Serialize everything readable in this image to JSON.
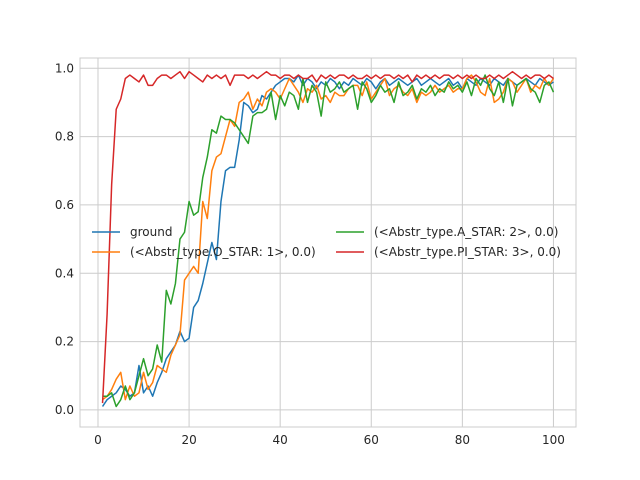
{
  "chart_data": {
    "type": "line",
    "title": "",
    "xlabel": "",
    "ylabel": "",
    "xlim": [
      -3.95,
      104.95
    ],
    "ylim": [
      -0.05,
      1.03
    ],
    "xticks": [
      0,
      20,
      40,
      60,
      80,
      100
    ],
    "yticks": [
      0.0,
      0.2,
      0.4,
      0.6,
      0.8,
      1.0
    ],
    "xtick_labels": [
      "0",
      "20",
      "40",
      "60",
      "80",
      "100"
    ],
    "ytick_labels": [
      "0.0",
      "0.2",
      "0.4",
      "0.6",
      "0.8",
      "1.0"
    ],
    "grid": true,
    "legend_location": "center-left",
    "x": [
      1,
      2,
      3,
      4,
      5,
      6,
      7,
      8,
      9,
      10,
      11,
      12,
      13,
      14,
      15,
      16,
      17,
      18,
      19,
      20,
      21,
      22,
      23,
      24,
      25,
      26,
      27,
      28,
      29,
      30,
      31,
      32,
      33,
      34,
      35,
      36,
      37,
      38,
      39,
      40,
      41,
      42,
      43,
      44,
      45,
      46,
      47,
      48,
      49,
      50,
      51,
      52,
      53,
      54,
      55,
      56,
      57,
      58,
      59,
      60,
      61,
      62,
      63,
      64,
      65,
      66,
      67,
      68,
      69,
      70,
      71,
      72,
      73,
      74,
      75,
      76,
      77,
      78,
      79,
      80,
      81,
      82,
      83,
      84,
      85,
      86,
      87,
      88,
      89,
      90,
      91,
      92,
      93,
      94,
      95,
      96,
      97,
      98,
      99,
      100
    ],
    "series": [
      {
        "name": "ground",
        "color": "#1f77b4",
        "values": [
          0.01,
          0.03,
          0.04,
          0.05,
          0.07,
          0.06,
          0.04,
          0.05,
          0.13,
          0.05,
          0.07,
          0.04,
          0.08,
          0.11,
          0.15,
          0.17,
          0.19,
          0.23,
          0.2,
          0.21,
          0.3,
          0.32,
          0.37,
          0.43,
          0.49,
          0.44,
          0.61,
          0.7,
          0.71,
          0.71,
          0.79,
          0.9,
          0.89,
          0.87,
          0.88,
          0.92,
          0.91,
          0.93,
          0.95,
          0.96,
          0.97,
          0.97,
          0.96,
          0.98,
          0.95,
          0.97,
          0.96,
          0.94,
          0.96,
          0.95,
          0.97,
          0.96,
          0.94,
          0.96,
          0.95,
          0.97,
          0.96,
          0.95,
          0.97,
          0.96,
          0.94,
          0.96,
          0.97,
          0.95,
          0.96,
          0.97,
          0.96,
          0.95,
          0.96,
          0.97,
          0.95,
          0.96,
          0.97,
          0.96,
          0.95,
          0.96,
          0.97,
          0.95,
          0.96,
          0.94,
          0.97,
          0.96,
          0.95,
          0.97,
          0.96,
          0.95,
          0.97,
          0.96,
          0.95,
          0.97,
          0.96,
          0.95,
          0.96,
          0.97,
          0.96,
          0.95,
          0.97,
          0.96,
          0.95,
          0.96
        ]
      },
      {
        "name": "(<Abstr_type.O_STAR: 1>, 0.0)",
        "color": "#ff7f0e",
        "values": [
          0.03,
          0.04,
          0.06,
          0.09,
          0.11,
          0.03,
          0.07,
          0.04,
          0.05,
          0.11,
          0.06,
          0.08,
          0.13,
          0.12,
          0.11,
          0.16,
          0.19,
          0.22,
          0.38,
          0.4,
          0.42,
          0.4,
          0.61,
          0.56,
          0.7,
          0.74,
          0.75,
          0.8,
          0.85,
          0.83,
          0.9,
          0.91,
          0.93,
          0.88,
          0.91,
          0.89,
          0.93,
          0.94,
          0.93,
          0.91,
          0.94,
          0.97,
          0.95,
          0.93,
          0.9,
          0.94,
          0.93,
          0.95,
          0.91,
          0.92,
          0.9,
          0.93,
          0.92,
          0.92,
          0.94,
          0.95,
          0.95,
          0.92,
          0.96,
          0.91,
          0.93,
          0.95,
          0.97,
          0.92,
          0.94,
          0.95,
          0.93,
          0.92,
          0.94,
          0.9,
          0.93,
          0.92,
          0.93,
          0.95,
          0.93,
          0.94,
          0.95,
          0.93,
          0.94,
          0.94,
          0.97,
          0.98,
          0.96,
          0.93,
          0.92,
          0.97,
          0.9,
          0.91,
          0.93,
          0.97,
          0.96,
          0.93,
          0.95,
          0.97,
          0.93,
          0.95,
          0.94,
          0.97,
          0.95,
          0.97
        ]
      },
      {
        "name": "(<Abstr_type.A_STAR: 2>, 0.0)",
        "color": "#2ca02c",
        "values": [
          0.04,
          0.04,
          0.05,
          0.01,
          0.03,
          0.07,
          0.03,
          0.05,
          0.1,
          0.15,
          0.1,
          0.12,
          0.19,
          0.14,
          0.35,
          0.31,
          0.37,
          0.5,
          0.52,
          0.61,
          0.57,
          0.58,
          0.68,
          0.74,
          0.82,
          0.81,
          0.86,
          0.85,
          0.85,
          0.84,
          0.82,
          0.8,
          0.78,
          0.86,
          0.87,
          0.87,
          0.88,
          0.93,
          0.85,
          0.92,
          0.89,
          0.93,
          0.92,
          0.88,
          0.97,
          0.9,
          0.95,
          0.93,
          0.86,
          0.96,
          0.93,
          0.94,
          0.96,
          0.93,
          0.94,
          0.95,
          0.88,
          0.96,
          0.94,
          0.9,
          0.92,
          0.95,
          0.93,
          0.94,
          0.9,
          0.96,
          0.92,
          0.93,
          0.95,
          0.91,
          0.94,
          0.93,
          0.95,
          0.92,
          0.94,
          0.93,
          0.96,
          0.94,
          0.95,
          0.93,
          0.96,
          0.92,
          0.97,
          0.95,
          0.98,
          0.94,
          0.92,
          0.96,
          0.9,
          0.97,
          0.89,
          0.95,
          0.96,
          0.97,
          0.94,
          0.93,
          0.9,
          0.95,
          0.96,
          0.93
        ]
      },
      {
        "name": "(<Abstr_type.PI_STAR: 3>, 0.0)",
        "color": "#d62728",
        "values": [
          0.02,
          0.28,
          0.66,
          0.88,
          0.91,
          0.97,
          0.98,
          0.97,
          0.96,
          0.98,
          0.95,
          0.95,
          0.97,
          0.98,
          0.98,
          0.97,
          0.98,
          0.99,
          0.97,
          0.99,
          0.98,
          0.97,
          0.96,
          0.98,
          0.97,
          0.98,
          0.97,
          0.98,
          0.95,
          0.98,
          0.98,
          0.98,
          0.97,
          0.98,
          0.97,
          0.98,
          0.99,
          0.98,
          0.98,
          0.97,
          0.98,
          0.98,
          0.97,
          0.98,
          0.97,
          0.97,
          0.98,
          0.96,
          0.98,
          0.97,
          0.98,
          0.97,
          0.98,
          0.98,
          0.97,
          0.98,
          0.97,
          0.97,
          0.98,
          0.97,
          0.98,
          0.97,
          0.98,
          0.98,
          0.97,
          0.98,
          0.97,
          0.98,
          0.96,
          0.98,
          0.97,
          0.98,
          0.97,
          0.98,
          0.97,
          0.98,
          0.98,
          0.97,
          0.98,
          0.97,
          0.98,
          0.97,
          0.98,
          0.97,
          0.97,
          0.98,
          0.97,
          0.98,
          0.97,
          0.98,
          0.99,
          0.98,
          0.97,
          0.98,
          0.97,
          0.98,
          0.98,
          0.97,
          0.98,
          0.97
        ]
      }
    ]
  }
}
